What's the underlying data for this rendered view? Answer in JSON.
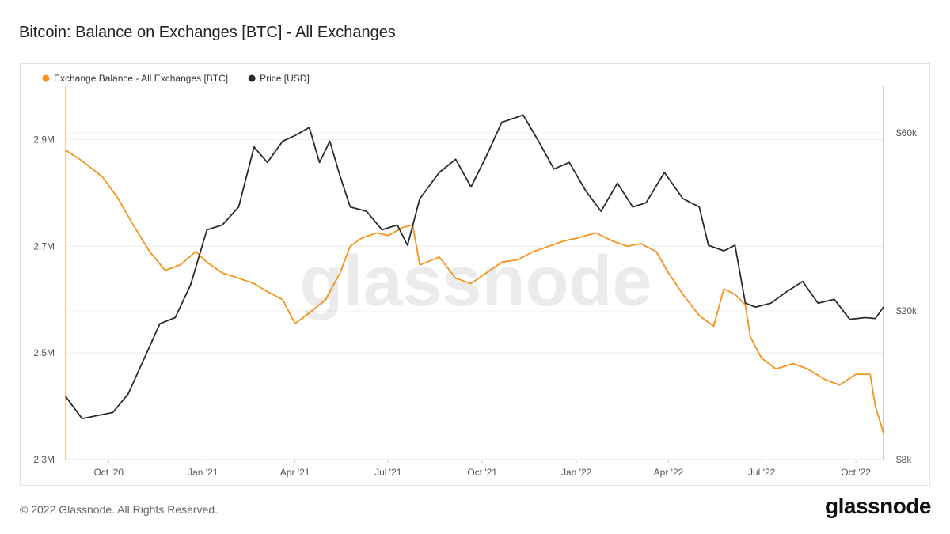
{
  "page": {
    "title": "Bitcoin: Balance on Exchanges [BTC] - All Exchanges",
    "copyright": "© 2022 Glassnode. All Rights Reserved.",
    "logo_text": "glassnode",
    "watermark_text": "glassnode"
  },
  "chart_data": {
    "type": "line",
    "title": "Bitcoin: Balance on Exchanges [BTC] - All Exchanges",
    "grid": true,
    "legend_placement": "top-left",
    "x_ticks": [
      "Oct '20",
      "Jan '21",
      "Apr '21",
      "Jul '21",
      "Oct '21",
      "Jan '22",
      "Apr '22",
      "Jul '22",
      "Oct '22"
    ],
    "x_tick_dates": [
      "2020-10-01",
      "2021-01-01",
      "2021-04-01",
      "2021-07-01",
      "2021-10-01",
      "2022-01-01",
      "2022-04-01",
      "2022-07-01",
      "2022-10-01"
    ],
    "xlim": [
      "2020-08-20",
      "2022-10-28"
    ],
    "y_left": {
      "ticks": [
        "2.9M",
        "2.7M",
        "2.5M",
        "2.3M"
      ],
      "tick_values": [
        2900000,
        2700000,
        2500000,
        2300000
      ],
      "lim": [
        2300000,
        3000000
      ]
    },
    "y_right": {
      "ticks": [
        "$60k",
        "$20k",
        "$8k"
      ],
      "tick_values": [
        60000,
        20000,
        8000
      ],
      "lim": [
        8000,
        80000
      ],
      "scale": "log"
    },
    "series": [
      {
        "name": "Exchange Balance - All Exchanges [BTC]",
        "axis": "left",
        "color": "#f7931a",
        "points": [
          [
            "2020-08-20",
            2880000
          ],
          [
            "2020-09-05",
            2860000
          ],
          [
            "2020-09-25",
            2830000
          ],
          [
            "2020-10-10",
            2790000
          ],
          [
            "2020-10-25",
            2740000
          ],
          [
            "2020-11-10",
            2690000
          ],
          [
            "2020-11-25",
            2655000
          ],
          [
            "2020-12-10",
            2665000
          ],
          [
            "2020-12-25",
            2690000
          ],
          [
            "2021-01-05",
            2670000
          ],
          [
            "2021-01-20",
            2650000
          ],
          [
            "2021-02-05",
            2640000
          ],
          [
            "2021-02-20",
            2630000
          ],
          [
            "2021-03-05",
            2615000
          ],
          [
            "2021-03-20",
            2600000
          ],
          [
            "2021-04-01",
            2555000
          ],
          [
            "2021-04-15",
            2575000
          ],
          [
            "2021-05-01",
            2600000
          ],
          [
            "2021-05-15",
            2650000
          ],
          [
            "2021-05-25",
            2700000
          ],
          [
            "2021-06-05",
            2715000
          ],
          [
            "2021-06-20",
            2725000
          ],
          [
            "2021-07-01",
            2720000
          ],
          [
            "2021-07-15",
            2735000
          ],
          [
            "2021-07-25",
            2740000
          ],
          [
            "2021-08-01",
            2665000
          ],
          [
            "2021-08-20",
            2680000
          ],
          [
            "2021-09-05",
            2640000
          ],
          [
            "2021-09-20",
            2630000
          ],
          [
            "2021-10-05",
            2650000
          ],
          [
            "2021-10-20",
            2670000
          ],
          [
            "2021-11-05",
            2675000
          ],
          [
            "2021-11-20",
            2690000
          ],
          [
            "2021-12-05",
            2700000
          ],
          [
            "2021-12-20",
            2710000
          ],
          [
            "2022-01-01",
            2715000
          ],
          [
            "2022-01-20",
            2725000
          ],
          [
            "2022-02-05",
            2710000
          ],
          [
            "2022-02-20",
            2700000
          ],
          [
            "2022-03-05",
            2705000
          ],
          [
            "2022-03-20",
            2690000
          ],
          [
            "2022-04-01",
            2650000
          ],
          [
            "2022-04-15",
            2610000
          ],
          [
            "2022-05-01",
            2570000
          ],
          [
            "2022-05-15",
            2550000
          ],
          [
            "2022-05-25",
            2620000
          ],
          [
            "2022-06-05",
            2610000
          ],
          [
            "2022-06-15",
            2590000
          ],
          [
            "2022-06-20",
            2530000
          ],
          [
            "2022-07-01",
            2490000
          ],
          [
            "2022-07-15",
            2470000
          ],
          [
            "2022-08-01",
            2480000
          ],
          [
            "2022-08-15",
            2470000
          ],
          [
            "2022-09-01",
            2450000
          ],
          [
            "2022-09-15",
            2440000
          ],
          [
            "2022-10-01",
            2460000
          ],
          [
            "2022-10-15",
            2460000
          ],
          [
            "2022-10-20",
            2400000
          ],
          [
            "2022-10-28",
            2350000
          ]
        ]
      },
      {
        "name": "Price [USD]",
        "axis": "right",
        "color": "#2b2b2b",
        "points": [
          [
            "2020-08-20",
            11800
          ],
          [
            "2020-09-05",
            10300
          ],
          [
            "2020-09-20",
            10500
          ],
          [
            "2020-10-05",
            10700
          ],
          [
            "2020-10-20",
            12000
          ],
          [
            "2020-11-05",
            15000
          ],
          [
            "2020-11-20",
            18500
          ],
          [
            "2020-12-05",
            19200
          ],
          [
            "2020-12-20",
            23500
          ],
          [
            "2021-01-05",
            33000
          ],
          [
            "2021-01-20",
            34000
          ],
          [
            "2021-02-05",
            38000
          ],
          [
            "2021-02-20",
            55000
          ],
          [
            "2021-03-05",
            50000
          ],
          [
            "2021-03-20",
            57000
          ],
          [
            "2021-04-01",
            59000
          ],
          [
            "2021-04-15",
            62000
          ],
          [
            "2021-04-25",
            50000
          ],
          [
            "2021-05-05",
            57000
          ],
          [
            "2021-05-15",
            46000
          ],
          [
            "2021-05-25",
            38000
          ],
          [
            "2021-06-10",
            37000
          ],
          [
            "2021-06-25",
            33000
          ],
          [
            "2021-07-10",
            34000
          ],
          [
            "2021-07-20",
            30000
          ],
          [
            "2021-08-01",
            40000
          ],
          [
            "2021-08-20",
            47000
          ],
          [
            "2021-09-05",
            51000
          ],
          [
            "2021-09-20",
            43000
          ],
          [
            "2021-10-05",
            52000
          ],
          [
            "2021-10-20",
            64000
          ],
          [
            "2021-11-10",
            67000
          ],
          [
            "2021-11-25",
            57000
          ],
          [
            "2021-12-10",
            48000
          ],
          [
            "2021-12-25",
            50000
          ],
          [
            "2022-01-10",
            42000
          ],
          [
            "2022-01-25",
            37000
          ],
          [
            "2022-02-10",
            44000
          ],
          [
            "2022-02-25",
            38000
          ],
          [
            "2022-03-10",
            39000
          ],
          [
            "2022-03-28",
            47000
          ],
          [
            "2022-04-15",
            40000
          ],
          [
            "2022-05-01",
            38000
          ],
          [
            "2022-05-10",
            30000
          ],
          [
            "2022-05-25",
            29000
          ],
          [
            "2022-06-05",
            30000
          ],
          [
            "2022-06-15",
            21000
          ],
          [
            "2022-06-25",
            20500
          ],
          [
            "2022-07-10",
            21000
          ],
          [
            "2022-07-25",
            22500
          ],
          [
            "2022-08-10",
            24000
          ],
          [
            "2022-08-25",
            21000
          ],
          [
            "2022-09-10",
            21500
          ],
          [
            "2022-09-25",
            19000
          ],
          [
            "2022-10-10",
            19200
          ],
          [
            "2022-10-20",
            19100
          ],
          [
            "2022-10-28",
            20500
          ]
        ]
      }
    ]
  }
}
